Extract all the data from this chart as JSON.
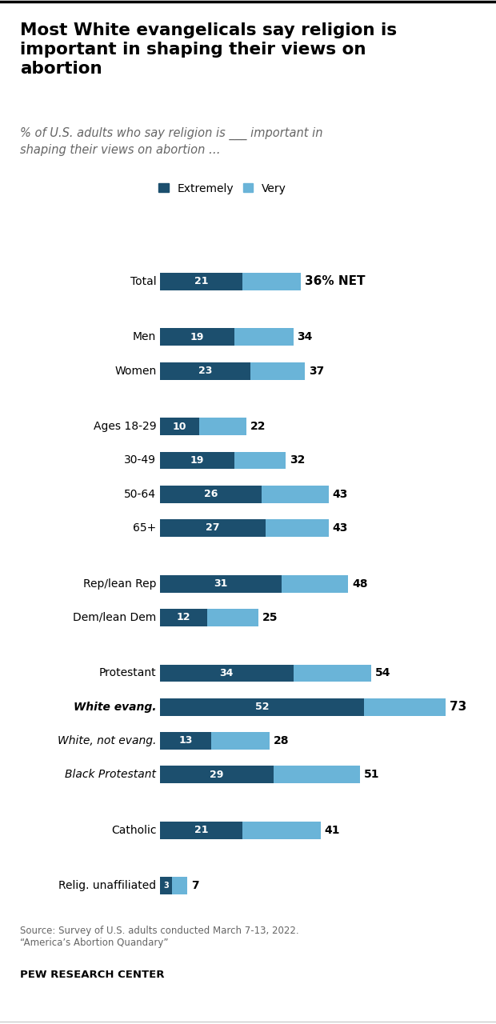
{
  "title": "Most White evangelicals say religion is\nimportant in shaping their views on\nabortion",
  "subtitle": "% of U.S. adults who say religion is ___ important in\nshaping their views on abortion …",
  "source": "Source: Survey of U.S. adults conducted March 7-13, 2022.\n“America’s Abortion Quandary”",
  "credit": "PEW RESEARCH CENTER",
  "color_extremely": "#1c4f6e",
  "color_very": "#6ab4d8",
  "bar_height": 0.52,
  "categories": [
    {
      "label": "Total",
      "extremely": 21,
      "net": 36,
      "group_gap": false,
      "bold_net": true,
      "net_suffix": "% NET",
      "italic": false
    },
    {
      "label": "Men",
      "extremely": 19,
      "net": 34,
      "group_gap": true,
      "bold_net": false,
      "net_suffix": "",
      "italic": false
    },
    {
      "label": "Women",
      "extremely": 23,
      "net": 37,
      "group_gap": false,
      "bold_net": false,
      "net_suffix": "",
      "italic": false
    },
    {
      "label": "Ages 18-29",
      "extremely": 10,
      "net": 22,
      "group_gap": true,
      "bold_net": false,
      "net_suffix": "",
      "italic": false
    },
    {
      "label": "30-49",
      "extremely": 19,
      "net": 32,
      "group_gap": false,
      "bold_net": false,
      "net_suffix": "",
      "italic": false
    },
    {
      "label": "50-64",
      "extremely": 26,
      "net": 43,
      "group_gap": false,
      "bold_net": false,
      "net_suffix": "",
      "italic": false
    },
    {
      "label": "65+",
      "extremely": 27,
      "net": 43,
      "group_gap": false,
      "bold_net": false,
      "net_suffix": "",
      "italic": false
    },
    {
      "label": "Rep/lean Rep",
      "extremely": 31,
      "net": 48,
      "group_gap": true,
      "bold_net": false,
      "net_suffix": "",
      "italic": false
    },
    {
      "label": "Dem/lean Dem",
      "extremely": 12,
      "net": 25,
      "group_gap": false,
      "bold_net": false,
      "net_suffix": "",
      "italic": false
    },
    {
      "label": "Protestant",
      "extremely": 34,
      "net": 54,
      "group_gap": true,
      "bold_net": false,
      "net_suffix": "",
      "italic": false
    },
    {
      "label": "White evang.",
      "extremely": 52,
      "net": 73,
      "group_gap": false,
      "bold_net": true,
      "net_suffix": "",
      "italic": true
    },
    {
      "label": "White, not evang.",
      "extremely": 13,
      "net": 28,
      "group_gap": false,
      "bold_net": false,
      "net_suffix": "",
      "italic": true
    },
    {
      "label": "Black Protestant",
      "extremely": 29,
      "net": 51,
      "group_gap": false,
      "bold_net": false,
      "net_suffix": "",
      "italic": true
    },
    {
      "label": "Catholic",
      "extremely": 21,
      "net": 41,
      "group_gap": true,
      "bold_net": false,
      "net_suffix": "",
      "italic": false
    },
    {
      "label": "Relig. unaffiliated",
      "extremely": 3,
      "net": 7,
      "group_gap": true,
      "bold_net": false,
      "net_suffix": "",
      "italic": false
    }
  ]
}
